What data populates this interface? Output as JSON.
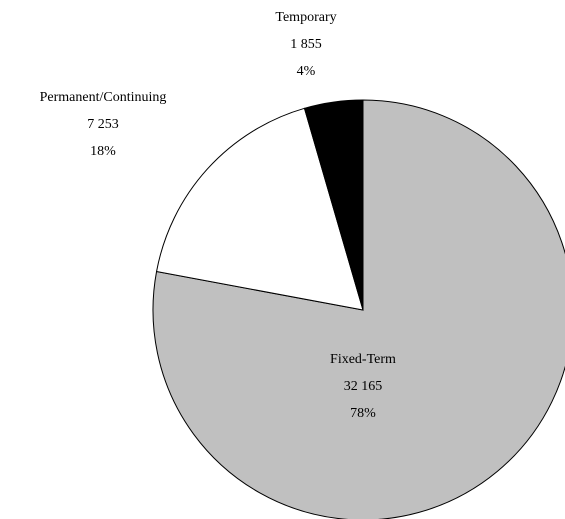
{
  "chart_data": {
    "type": "pie",
    "categories": [
      "Fixed-Term",
      "Permanent/Continuing",
      "Temporary"
    ],
    "values": [
      32165,
      7253,
      1855
    ],
    "value_labels": [
      "32 165",
      "7 253",
      "1 855"
    ],
    "percent_labels": [
      "78%",
      "18%",
      "4%"
    ],
    "colors": [
      "#c0c0c0",
      "#ffffff",
      "#000000"
    ]
  }
}
